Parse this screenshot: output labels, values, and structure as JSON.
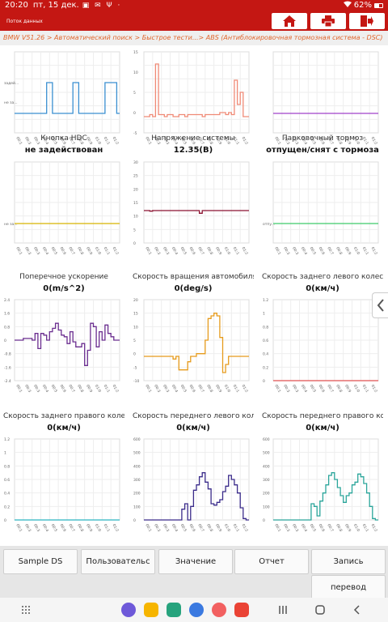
{
  "status": {
    "time": "20:20",
    "date": "пт, 15 дек.",
    "icons": "▣ ✉ Ψ ·",
    "battery": "62%"
  },
  "app": {
    "title": "Поток данных"
  },
  "breadcrumb": "BMW V51.26 > Автоматический поиск  > Быстрое тести...> ABS (Антиблокировочная тормозная система - DSC)",
  "colors": {
    "accent": "#c41713",
    "breadcrumb": "#e0672e"
  },
  "charts": [
    {
      "label": "",
      "value": "",
      "color": "#3a8fd1",
      "ylim": [
        0,
        1
      ],
      "yticks": [
        "задей...",
        "не за..."
      ]
    },
    {
      "label": "",
      "value": "",
      "color": "#f08a76",
      "ylim": [
        -5,
        15
      ],
      "yticks": [
        "15",
        "10",
        "5",
        "0",
        "-5"
      ]
    },
    {
      "label": "",
      "value": "",
      "color": "#a042c9",
      "ylim": [
        0,
        1
      ],
      "yticks": []
    },
    {
      "label": "Кнопка HDC",
      "value": "не задействован",
      "color": "#d8b400",
      "ylim": [
        0,
        1
      ],
      "yticks": [
        "не за..."
      ]
    },
    {
      "label": "Напряжение системы",
      "value": "12.35(В)",
      "color": "#8a1230",
      "ylim": [
        0,
        30
      ],
      "yticks": [
        "30",
        "25",
        "20",
        "15",
        "10",
        "5",
        "0"
      ]
    },
    {
      "label": "Парковочный тормоз",
      "value": "отпущен/снят с тормоза",
      "color": "#3fcb6a",
      "ylim": [
        0,
        1
      ],
      "yticks": [
        "отпу..."
      ]
    },
    {
      "label": "Поперечное ускорение",
      "value": "0(m/s^2)",
      "color": "#6a2d8f",
      "ylim": [
        -2.4,
        2.4
      ],
      "yticks": [
        "2.4",
        "1.6",
        "0.8",
        "0",
        "-0.8",
        "-1.6",
        "-2.4"
      ]
    },
    {
      "label": "Скорость вращения автомобиля в...",
      "value": "0(deg/s)",
      "color": "#e69b1c",
      "ylim": [
        -10,
        20
      ],
      "yticks": [
        "20",
        "15",
        "10",
        "5",
        "0",
        "-5",
        "-10"
      ]
    },
    {
      "label": "Скорость заднего левого колеса",
      "value": "0(км/ч)",
      "color": "#e05050",
      "ylim": [
        0,
        1.2
      ],
      "yticks": [
        "1.2",
        "1",
        "0.8",
        "0.6",
        "0.4",
        "0.2",
        "0"
      ]
    },
    {
      "label": "Скорость заднего правого колеса",
      "value": "0(км/ч)",
      "color": "#2ab3c0",
      "ylim": [
        0,
        1.2
      ],
      "yticks": [
        "1.2",
        "1",
        "0.8",
        "0.6",
        "0.4",
        "0.2",
        "0"
      ]
    },
    {
      "label": "Скорость переднего левого колеса",
      "value": "0(км/ч)",
      "color": "#3a2b8a",
      "ylim": [
        0,
        600
      ],
      "yticks": [
        "600",
        "500",
        "400",
        "300",
        "200",
        "100",
        "0"
      ]
    },
    {
      "label": "Скорость переднего правого колес...",
      "value": "0(км/ч)",
      "color": "#2aa59a",
      "ylim": [
        0,
        600
      ],
      "yticks": [
        "600",
        "500",
        "400",
        "300",
        "200",
        "100",
        "0"
      ]
    }
  ],
  "chart_data": [
    {
      "type": "line",
      "name": "chart-1",
      "values": [
        0,
        0,
        0,
        0,
        0,
        0,
        0,
        0,
        0,
        0,
        0,
        1,
        1,
        0,
        0,
        0,
        0,
        0,
        0,
        0,
        1,
        1,
        0,
        0,
        0,
        0,
        0,
        0,
        0,
        0,
        0,
        1,
        1,
        1,
        1,
        0
      ]
    },
    {
      "type": "line",
      "name": "chart-2",
      "values": [
        -1,
        -1,
        -0.5,
        -1,
        12,
        -0.5,
        -0.5,
        -1,
        -0.5,
        -0.5,
        -1,
        -1,
        -0.5,
        -0.5,
        -1,
        -0.5,
        -0.5,
        -0.5,
        -0.5,
        -0.5,
        -1,
        -0.5,
        -0.5,
        -0.5,
        -0.5,
        -0.5,
        0,
        0,
        -0.5,
        0,
        -0.5,
        8,
        2,
        5,
        -1,
        -1
      ]
    },
    {
      "type": "line",
      "name": "chart-3",
      "values": [
        0,
        0,
        0,
        0,
        0,
        0,
        0,
        0,
        0,
        0,
        0,
        0,
        0,
        0,
        0,
        0,
        0,
        0,
        0,
        0,
        0,
        0,
        0,
        0,
        0,
        0,
        0,
        0,
        0,
        0,
        0,
        0,
        0,
        0,
        0,
        0
      ]
    },
    {
      "type": "line",
      "name": "HDC",
      "values": [
        0,
        0,
        0,
        0,
        0,
        0,
        0,
        0,
        0,
        0,
        0,
        0,
        0,
        0,
        0,
        0,
        0,
        0,
        0,
        0,
        0,
        0,
        0,
        0,
        0,
        0,
        0,
        0,
        0,
        0,
        0,
        0,
        0,
        0,
        0,
        0
      ]
    },
    {
      "type": "line",
      "name": "voltage",
      "values": [
        12,
        12,
        11.8,
        12,
        12,
        12,
        12,
        12,
        12,
        12,
        12,
        12,
        12,
        12,
        12,
        12,
        12,
        12,
        12,
        11,
        12,
        12,
        12,
        12,
        12,
        12,
        12,
        12,
        12,
        12,
        12,
        12,
        12,
        12,
        12,
        12
      ]
    },
    {
      "type": "line",
      "name": "parking",
      "values": [
        0,
        0,
        0,
        0,
        0,
        0,
        0,
        0,
        0,
        0,
        0,
        0,
        0,
        0,
        0,
        0,
        0,
        0,
        0,
        0,
        0,
        0,
        0,
        0,
        0,
        0,
        0,
        0,
        0,
        0,
        0,
        0,
        0,
        0,
        0,
        0
      ]
    },
    {
      "type": "line",
      "name": "lateral",
      "values": [
        0,
        0,
        0,
        0.1,
        0.1,
        0.1,
        0,
        0.4,
        -0.5,
        0.4,
        0.3,
        0,
        0.5,
        0.7,
        1,
        0.6,
        0.3,
        0.2,
        -0.2,
        0.5,
        -0.1,
        -0.4,
        -0.4,
        -0.2,
        -1.5,
        -0.6,
        1,
        0.8,
        -0.4,
        0.5,
        0,
        0.9,
        0.4,
        0.2,
        0,
        0
      ]
    },
    {
      "type": "line",
      "name": "yaw",
      "values": [
        -1,
        -1,
        -1,
        -1,
        -1,
        -1,
        -1,
        -1,
        -1,
        -1,
        -2,
        -1,
        -6,
        -6,
        -6,
        -3,
        -1,
        -1,
        0,
        0,
        0,
        5,
        13,
        14,
        15,
        14,
        6,
        -7,
        -4,
        -1,
        -1,
        -1,
        -1,
        -1,
        -1,
        -1
      ]
    },
    {
      "type": "line",
      "name": "rl",
      "values": [
        0,
        0,
        0,
        0,
        0,
        0,
        0,
        0,
        0,
        0,
        0,
        0,
        0,
        0,
        0,
        0,
        0,
        0,
        0,
        0,
        0,
        0,
        0,
        0,
        0,
        0,
        0,
        0,
        0,
        0,
        0,
        0,
        0,
        0,
        0,
        0
      ]
    },
    {
      "type": "line",
      "name": "rr",
      "values": [
        0,
        0,
        0,
        0,
        0,
        0,
        0,
        0,
        0,
        0,
        0,
        0,
        0,
        0,
        0,
        0,
        0,
        0,
        0,
        0,
        0,
        0,
        0,
        0,
        0,
        0,
        0,
        0,
        0,
        0,
        0,
        0,
        0,
        0,
        0,
        0
      ]
    },
    {
      "type": "line",
      "name": "fl",
      "values": [
        0,
        0,
        0,
        0,
        0,
        0,
        0,
        0,
        0,
        0,
        0,
        0,
        0,
        80,
        120,
        0,
        100,
        220,
        260,
        320,
        350,
        280,
        230,
        120,
        110,
        130,
        150,
        210,
        250,
        330,
        300,
        260,
        200,
        90,
        10,
        0
      ]
    },
    {
      "type": "line",
      "name": "fr",
      "values": [
        0,
        0,
        0,
        0,
        0,
        0,
        0,
        0,
        0,
        0,
        0,
        0,
        0,
        120,
        100,
        30,
        140,
        200,
        260,
        330,
        350,
        300,
        240,
        180,
        130,
        180,
        200,
        260,
        280,
        340,
        320,
        270,
        200,
        100,
        10,
        0
      ]
    }
  ],
  "xticks": [
    "00:1",
    "00:3",
    "00:3",
    "00:4",
    "00:5",
    "00:6",
    "00:7",
    "00:8",
    "00:9",
    "01:0",
    "01:1",
    "01:2"
  ],
  "toolbar": {
    "btn1": "Sample DS",
    "btn2": "Пользовательс",
    "btn3": "Значение",
    "btn4": "Отчет",
    "btn5": "Запись",
    "btn6": "перевод"
  }
}
